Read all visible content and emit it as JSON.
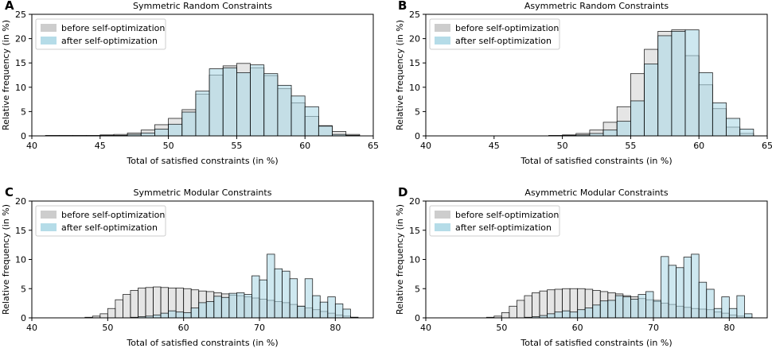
{
  "chart_data": [
    {
      "panel": "A",
      "type": "bar",
      "title": "Symmetric Random Constraints",
      "xlabel": "Total of satisfied constraints (in %)",
      "ylabel": "Relative frequency (in %)",
      "xlim": [
        40,
        65
      ],
      "ylim": [
        0,
        25
      ],
      "xticks": [
        40,
        45,
        50,
        55,
        60,
        65
      ],
      "yticks": [
        0,
        5,
        10,
        15,
        20,
        25
      ],
      "bin_width": 1,
      "legend_position": "top-left",
      "series": [
        {
          "name": "before self-optimization",
          "color": "#c8c8c8",
          "x": [
            41,
            42,
            43,
            44,
            45,
            46,
            47,
            48,
            49,
            50,
            51,
            52,
            53,
            54,
            55,
            56,
            57,
            58,
            59,
            60,
            61,
            62,
            63
          ],
          "values": [
            0.1,
            0.1,
            0.1,
            0.1,
            0.2,
            0.3,
            0.6,
            1.2,
            2.3,
            3.6,
            5.4,
            8.6,
            12.5,
            14.4,
            14.9,
            14.0,
            12.4,
            9.7,
            6.8,
            4.0,
            2.1,
            0.9,
            0.3
          ]
        },
        {
          "name": "after self-optimization",
          "color": "#add8e6",
          "x": [
            41,
            42,
            43,
            44,
            45,
            46,
            47,
            48,
            49,
            50,
            51,
            52,
            53,
            54,
            55,
            56,
            57,
            58,
            59,
            60,
            61,
            62,
            63
          ],
          "values": [
            0,
            0,
            0,
            0,
            0.1,
            0.1,
            0.3,
            0.6,
            1.4,
            2.4,
            4.9,
            9.2,
            13.8,
            14.0,
            13.0,
            14.6,
            12.8,
            10.4,
            8.2,
            6.0,
            2.0,
            0.3,
            0.1
          ]
        }
      ]
    },
    {
      "panel": "B",
      "type": "bar",
      "title": "Asymmetric Random Constraints",
      "xlabel": "Total of satisfied constraints (in %)",
      "ylabel": "Relative frequency (in %)",
      "xlim": [
        40,
        65
      ],
      "ylim": [
        0,
        25
      ],
      "xticks": [
        40,
        45,
        50,
        55,
        60,
        65
      ],
      "yticks": [
        0,
        5,
        10,
        15,
        20,
        25
      ],
      "bin_width": 1,
      "legend_position": "top-left",
      "series": [
        {
          "name": "before self-optimization",
          "color": "#c8c8c8",
          "x": [
            41,
            42,
            43,
            44,
            45,
            46,
            47,
            48,
            49,
            50,
            51,
            52,
            53,
            54,
            55,
            56,
            57,
            58,
            59,
            60,
            61,
            62,
            63
          ],
          "values": [
            0,
            0,
            0,
            0,
            0,
            0,
            0,
            0,
            0.1,
            0.2,
            0.5,
            1.2,
            2.8,
            6.0,
            12.8,
            17.8,
            21.5,
            21.8,
            16.5,
            10.5,
            5.6,
            1.8,
            0.5
          ]
        },
        {
          "name": "after self-optimization",
          "color": "#add8e6",
          "x": [
            41,
            42,
            43,
            44,
            45,
            46,
            47,
            48,
            49,
            50,
            51,
            52,
            53,
            54,
            55,
            56,
            57,
            58,
            59,
            60,
            61,
            62,
            63
          ],
          "values": [
            0,
            0,
            0,
            0,
            0,
            0,
            0,
            0,
            0,
            0.1,
            0.2,
            0.5,
            1.2,
            3.0,
            7.2,
            14.8,
            20.6,
            21.5,
            21.8,
            13.0,
            6.8,
            3.6,
            1.4
          ]
        }
      ]
    },
    {
      "panel": "C",
      "type": "bar",
      "title": "Symmetric Modular Constraints",
      "xlabel": "Total of satisfied constraints (in %)",
      "ylabel": "Relative frequency (in %)",
      "xlim": [
        40,
        85
      ],
      "ylim": [
        0,
        20
      ],
      "xticks": [
        40,
        50,
        60,
        70,
        80
      ],
      "yticks": [
        0,
        5,
        10,
        15,
        20
      ],
      "bin_width": 1,
      "legend_position": "top-left",
      "series": [
        {
          "name": "before self-optimization",
          "color": "#c8c8c8",
          "x": [
            41,
            42,
            43,
            44,
            45,
            46,
            47,
            48,
            49,
            50,
            51,
            52,
            53,
            54,
            55,
            56,
            57,
            58,
            59,
            60,
            61,
            62,
            63,
            64,
            65,
            66,
            67,
            68,
            69,
            70,
            71,
            72,
            73,
            74,
            75,
            76,
            77,
            78,
            79,
            80,
            81,
            82,
            83,
            84
          ],
          "values": [
            0,
            0,
            0,
            0,
            0,
            0,
            0.1,
            0.3,
            0.7,
            1.6,
            3.1,
            4.0,
            4.7,
            5.1,
            5.2,
            5.3,
            5.2,
            5.1,
            5.1,
            5.0,
            4.8,
            4.6,
            4.5,
            4.3,
            4.1,
            3.9,
            3.8,
            3.6,
            3.4,
            3.2,
            3.0,
            2.8,
            2.6,
            2.3,
            2.0,
            1.7,
            1.4,
            1.1,
            0.8,
            0.5,
            0.3,
            0.1,
            0,
            0
          ]
        },
        {
          "name": "after self-optimization",
          "color": "#add8e6",
          "x": [
            41,
            42,
            43,
            44,
            45,
            46,
            47,
            48,
            49,
            50,
            51,
            52,
            53,
            54,
            55,
            56,
            57,
            58,
            59,
            60,
            61,
            62,
            63,
            64,
            65,
            66,
            67,
            68,
            69,
            70,
            71,
            72,
            73,
            74,
            75,
            76,
            77,
            78,
            79,
            80,
            81,
            82,
            83,
            84
          ],
          "values": [
            0,
            0,
            0,
            0,
            0,
            0,
            0,
            0,
            0,
            0,
            0,
            0,
            0.1,
            0.2,
            0.3,
            0.5,
            0.8,
            1.2,
            1.0,
            0.9,
            1.7,
            2.6,
            2.8,
            3.7,
            3.5,
            4.2,
            4.3,
            4.0,
            7.2,
            6.5,
            10.9,
            8.4,
            8.0,
            6.7,
            2.0,
            6.7,
            3.8,
            2.7,
            3.6,
            2.4,
            1.5,
            0.1,
            0,
            0
          ]
        }
      ]
    },
    {
      "panel": "D",
      "type": "bar",
      "title": "Asymmetric Modular Constraints",
      "xlabel": "Total of satisfied constraints (in %)",
      "ylabel": "Relative frequency (in %)",
      "xlim": [
        40,
        85
      ],
      "ylim": [
        0,
        20
      ],
      "xticks": [
        40,
        50,
        60,
        70,
        80
      ],
      "yticks": [
        0,
        5,
        10,
        15,
        20
      ],
      "bin_width": 1,
      "legend_position": "top-left",
      "series": [
        {
          "name": "before self-optimization",
          "color": "#c8c8c8",
          "x": [
            41,
            42,
            43,
            44,
            45,
            46,
            47,
            48,
            49,
            50,
            51,
            52,
            53,
            54,
            55,
            56,
            57,
            58,
            59,
            60,
            61,
            62,
            63,
            64,
            65,
            66,
            67,
            68,
            69,
            70,
            71,
            72,
            73,
            74,
            75,
            76,
            77,
            78,
            79,
            80,
            81,
            82,
            83,
            84
          ],
          "values": [
            0,
            0,
            0,
            0,
            0,
            0,
            0,
            0.1,
            0.3,
            0.9,
            2.0,
            3.0,
            3.8,
            4.3,
            4.6,
            4.8,
            4.9,
            5.0,
            5.0,
            5.0,
            4.9,
            4.7,
            4.5,
            4.3,
            4.1,
            3.8,
            3.6,
            3.3,
            3.1,
            2.8,
            2.5,
            2.3,
            2.0,
            1.8,
            1.6,
            1.5,
            1.4,
            1.0,
            0.8,
            0.5,
            0.3,
            0.1,
            0,
            0
          ]
        },
        {
          "name": "after self-optimization",
          "color": "#add8e6",
          "x": [
            41,
            42,
            43,
            44,
            45,
            46,
            47,
            48,
            49,
            50,
            51,
            52,
            53,
            54,
            55,
            56,
            57,
            58,
            59,
            60,
            61,
            62,
            63,
            64,
            65,
            66,
            67,
            68,
            69,
            70,
            71,
            72,
            73,
            74,
            75,
            76,
            77,
            78,
            79,
            80,
            81,
            82,
            83,
            84
          ],
          "values": [
            0,
            0,
            0,
            0,
            0,
            0,
            0,
            0,
            0,
            0,
            0,
            0,
            0.1,
            0.2,
            0.4,
            0.7,
            1.0,
            1.2,
            1.0,
            1.4,
            1.7,
            2.2,
            2.9,
            3.0,
            3.8,
            3.6,
            3.2,
            4.0,
            4.5,
            3.0,
            10.5,
            9.0,
            8.6,
            10.4,
            10.9,
            6.1,
            4.9,
            1.6,
            3.6,
            1.6,
            3.8,
            0.7,
            0,
            0
          ]
        }
      ]
    }
  ]
}
